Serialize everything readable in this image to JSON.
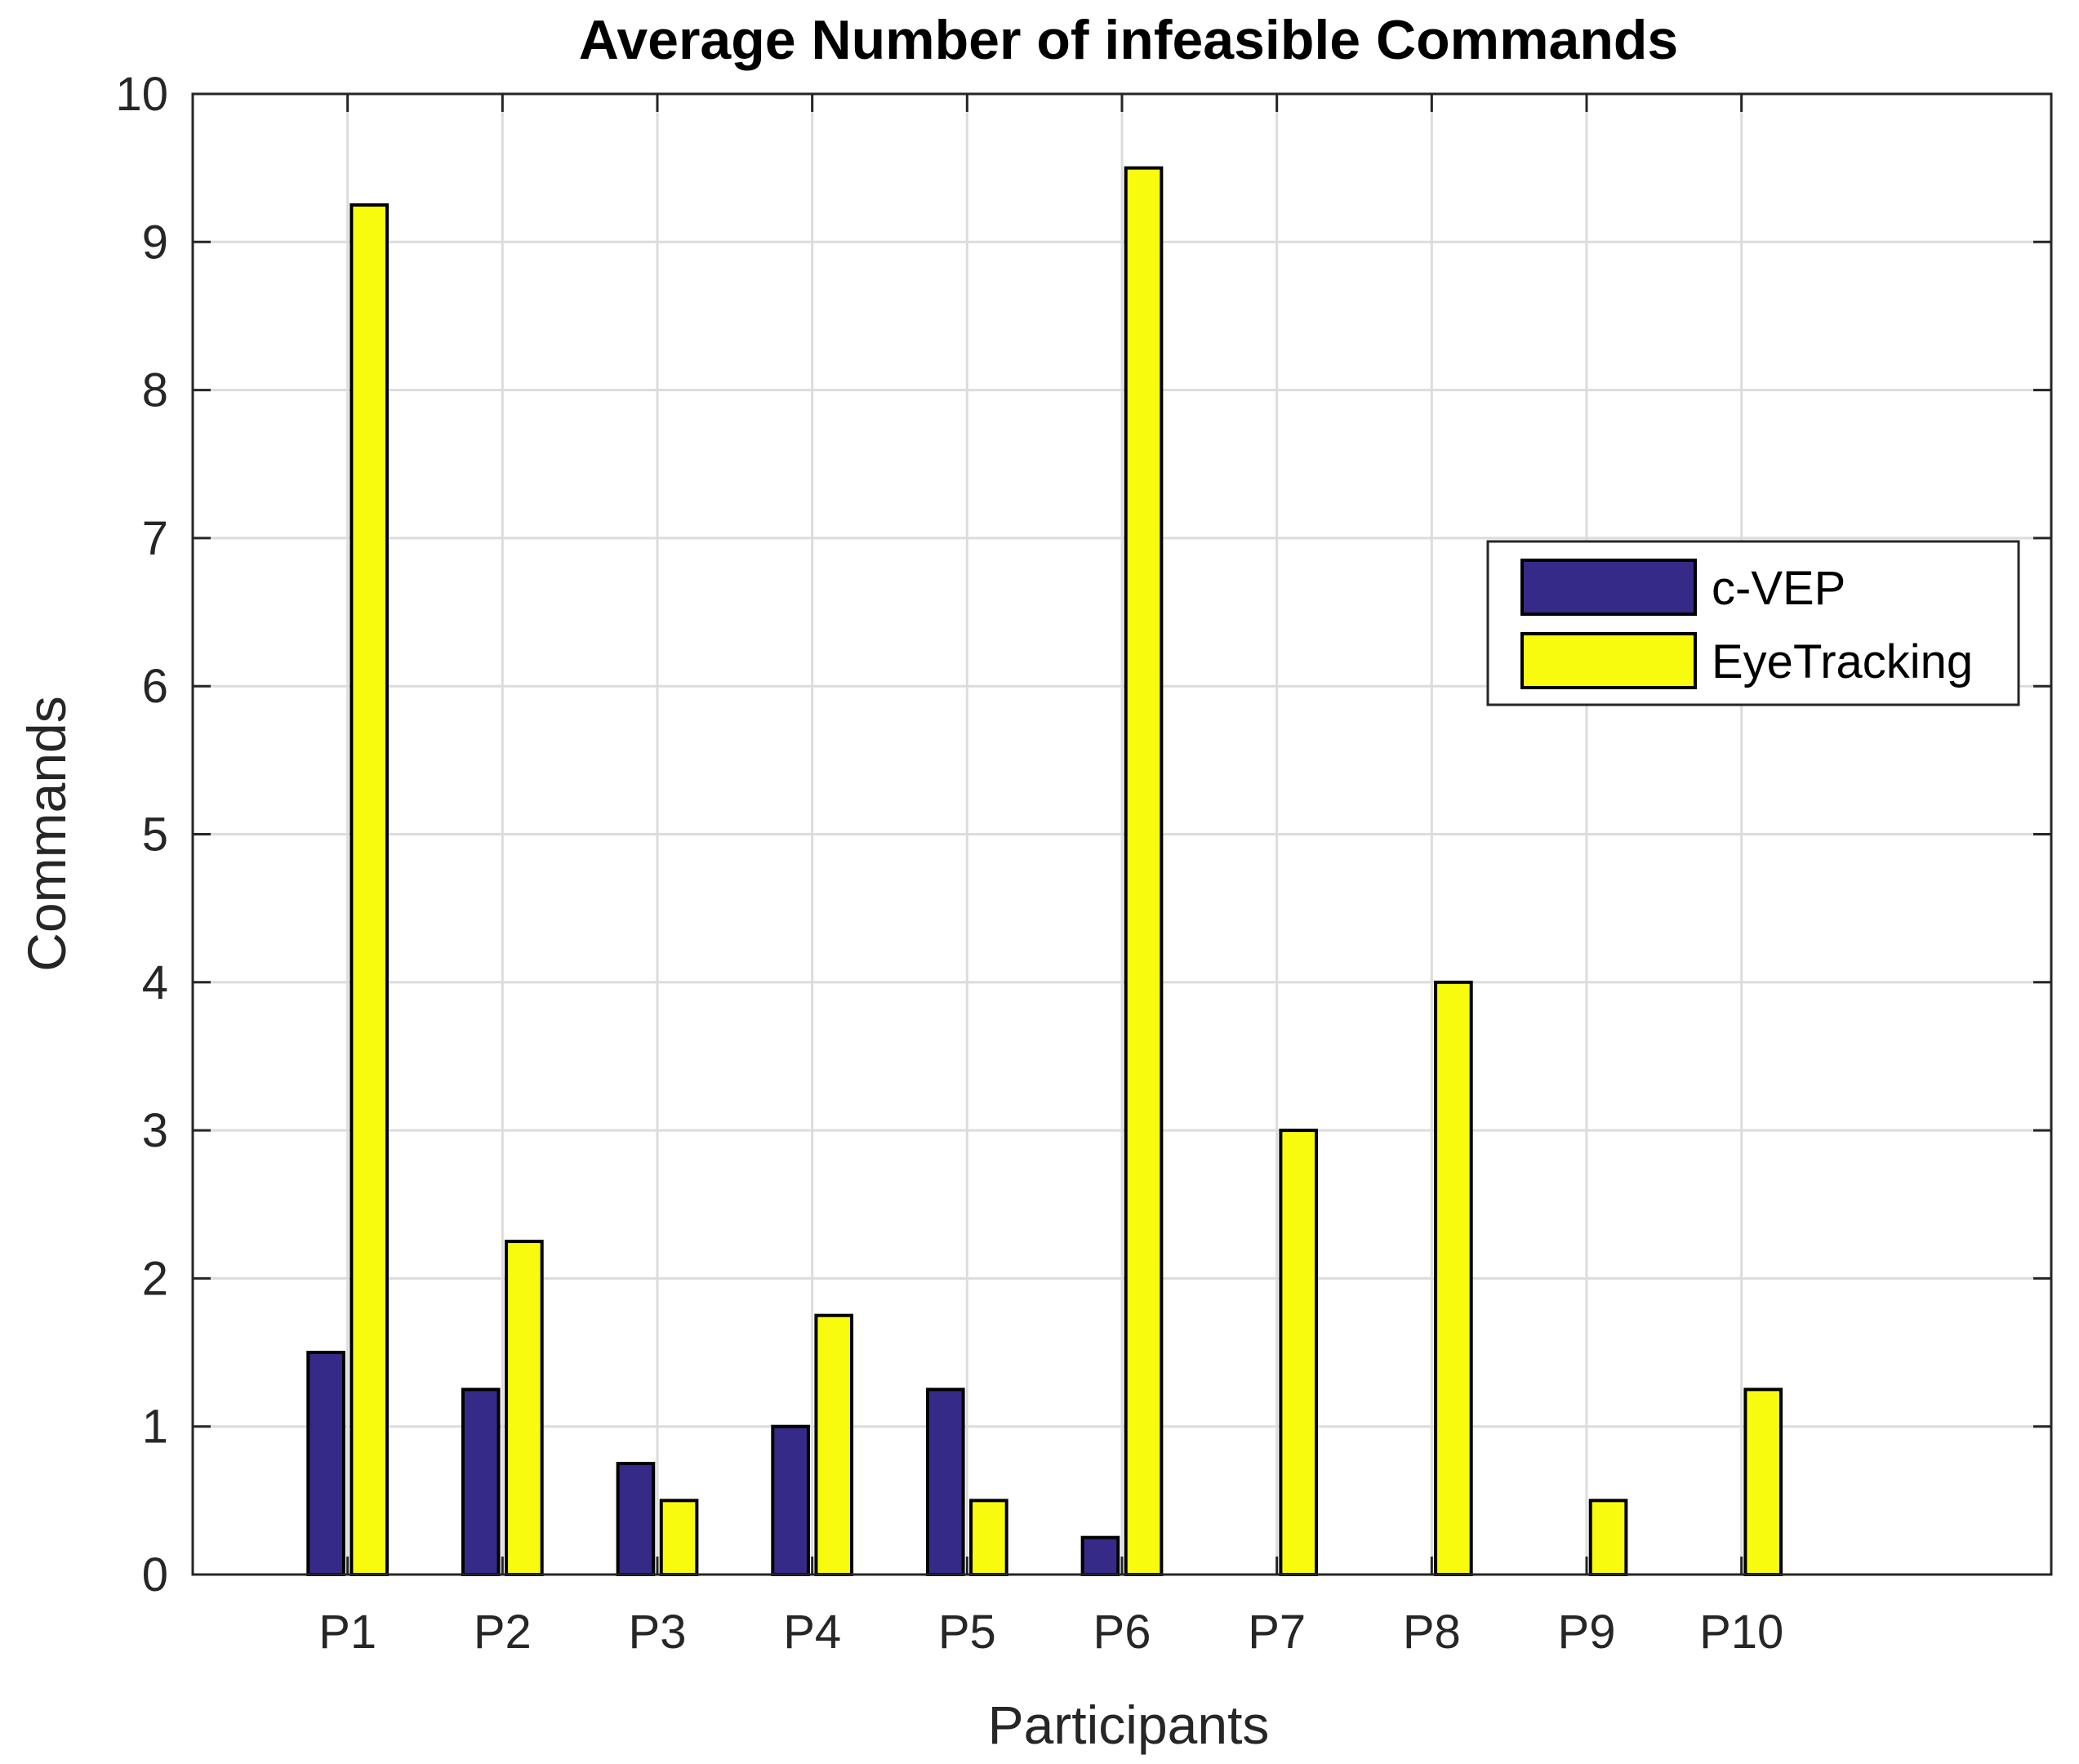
{
  "chart_data": {
    "type": "bar",
    "title": "Average Number of infeasible Commands",
    "xlabel": "Participants",
    "ylabel": "Commands",
    "categories": [
      "P1",
      "P2",
      "P3",
      "P4",
      "P5",
      "P6",
      "P7",
      "P8",
      "P9",
      "P10"
    ],
    "series": [
      {
        "name": "c-VEP",
        "color": "#352a87",
        "values": [
          1.5,
          1.25,
          0.75,
          1.0,
          1.25,
          0.25,
          0,
          0,
          0,
          0
        ]
      },
      {
        "name": "EyeTracking",
        "color": "#f9fb0e",
        "values": [
          9.25,
          2.25,
          0.5,
          1.75,
          0.5,
          9.5,
          3.0,
          4.0,
          0.5,
          1.25
        ]
      }
    ],
    "xlim": [
      0,
      12
    ],
    "ylim": [
      0,
      10
    ],
    "yticks": [
      "0",
      "1",
      "2",
      "3",
      "4",
      "5",
      "6",
      "7",
      "8",
      "9",
      "10"
    ],
    "grid": true,
    "legend_position": "right"
  }
}
